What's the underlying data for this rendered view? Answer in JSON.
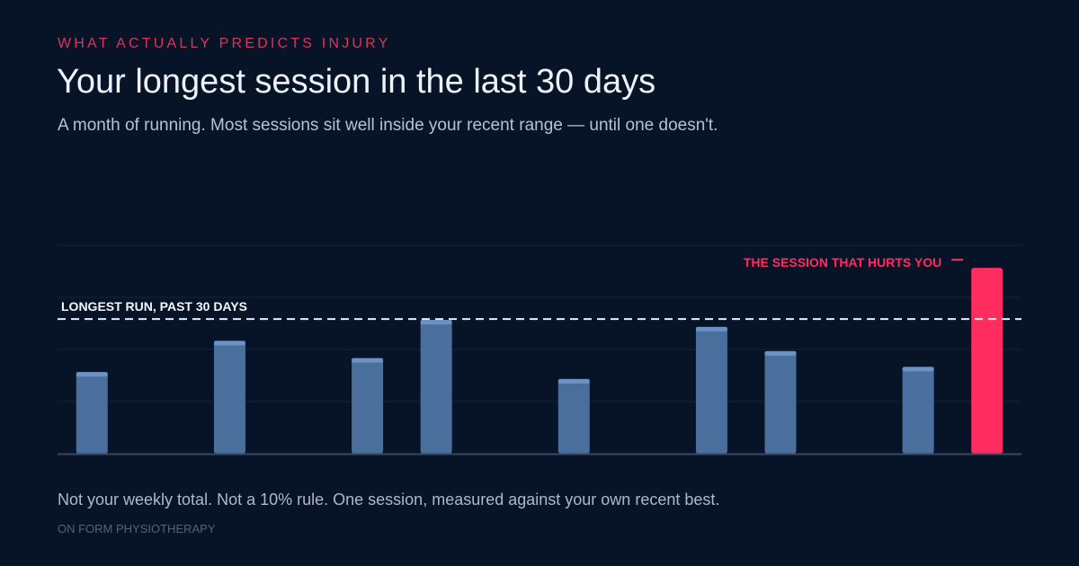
{
  "header": {
    "eyebrow": "WHAT ACTUALLY PREDICTS INJURY",
    "title": "Your longest session in the last 30 days",
    "subtitle": "A month of running. Most sessions sit well inside your recent range — until one doesn't."
  },
  "footer": {
    "note": "Not your weekly total. Not a 10% rule. One session, measured against your own recent best.",
    "brand": "ON FORM PHYSIOTHERAPY"
  },
  "colors": {
    "background": "#071327",
    "bar": "#4a6f9c",
    "bar_cap": "#6a92c4",
    "highlight": "#ff2d5f",
    "reference_line": "#e8ecf3",
    "gridline": "#16243a",
    "baseline": "#3a4a63"
  },
  "chart_data": {
    "type": "bar",
    "x": [
      1,
      3,
      5,
      6,
      8,
      10,
      11,
      13,
      14
    ],
    "values": [
      47,
      65,
      55,
      77,
      43,
      73,
      59,
      50,
      107
    ],
    "highlight_index": 8,
    "reference_line": {
      "value": 77,
      "label": "LONGEST RUN, PAST 30 DAYS",
      "style": "dashed"
    },
    "annotation": {
      "target_index": 8,
      "label": "THE SESSION THAT HURTS YOU"
    },
    "ylim": [
      0,
      120
    ],
    "xlim": [
      0.5,
      14.5
    ],
    "gridlines": [
      30,
      60,
      90,
      120
    ],
    "xlabel": "",
    "ylabel": "",
    "grid": true,
    "legend": "none"
  }
}
